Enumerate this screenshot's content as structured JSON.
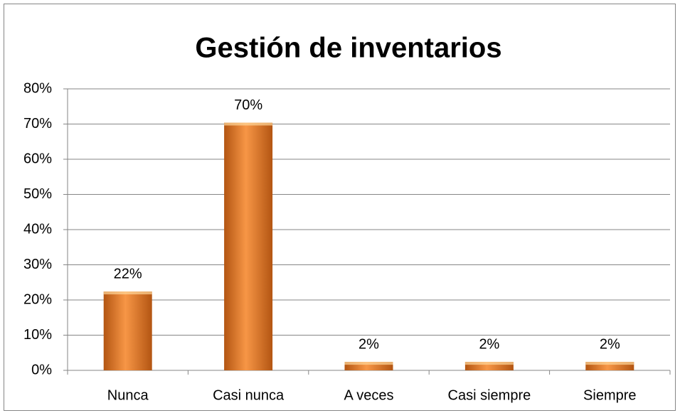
{
  "chart_data": {
    "type": "bar",
    "title": "Gestión de inventarios",
    "categories": [
      "Nunca",
      "Casi nunca",
      "A veces",
      "Casi siempre",
      "Siempre"
    ],
    "values": [
      22.4,
      70.4,
      2.4,
      2.4,
      2.4
    ],
    "value_labels": [
      "22%",
      "70%",
      "2%",
      "2%",
      "2%"
    ],
    "color": "#f79646",
    "ylim": [
      0,
      80
    ],
    "yticks": [
      {
        "value": 0,
        "label": "0%"
      },
      {
        "value": 10,
        "label": "10%"
      },
      {
        "value": 20,
        "label": "20%"
      },
      {
        "value": 30,
        "label": "30%"
      },
      {
        "value": 40,
        "label": "40%"
      },
      {
        "value": 50,
        "label": "50%"
      },
      {
        "value": 60,
        "label": "60%"
      },
      {
        "value": 70,
        "label": "70%"
      },
      {
        "value": 80,
        "label": "80%"
      }
    ],
    "grid": true
  }
}
